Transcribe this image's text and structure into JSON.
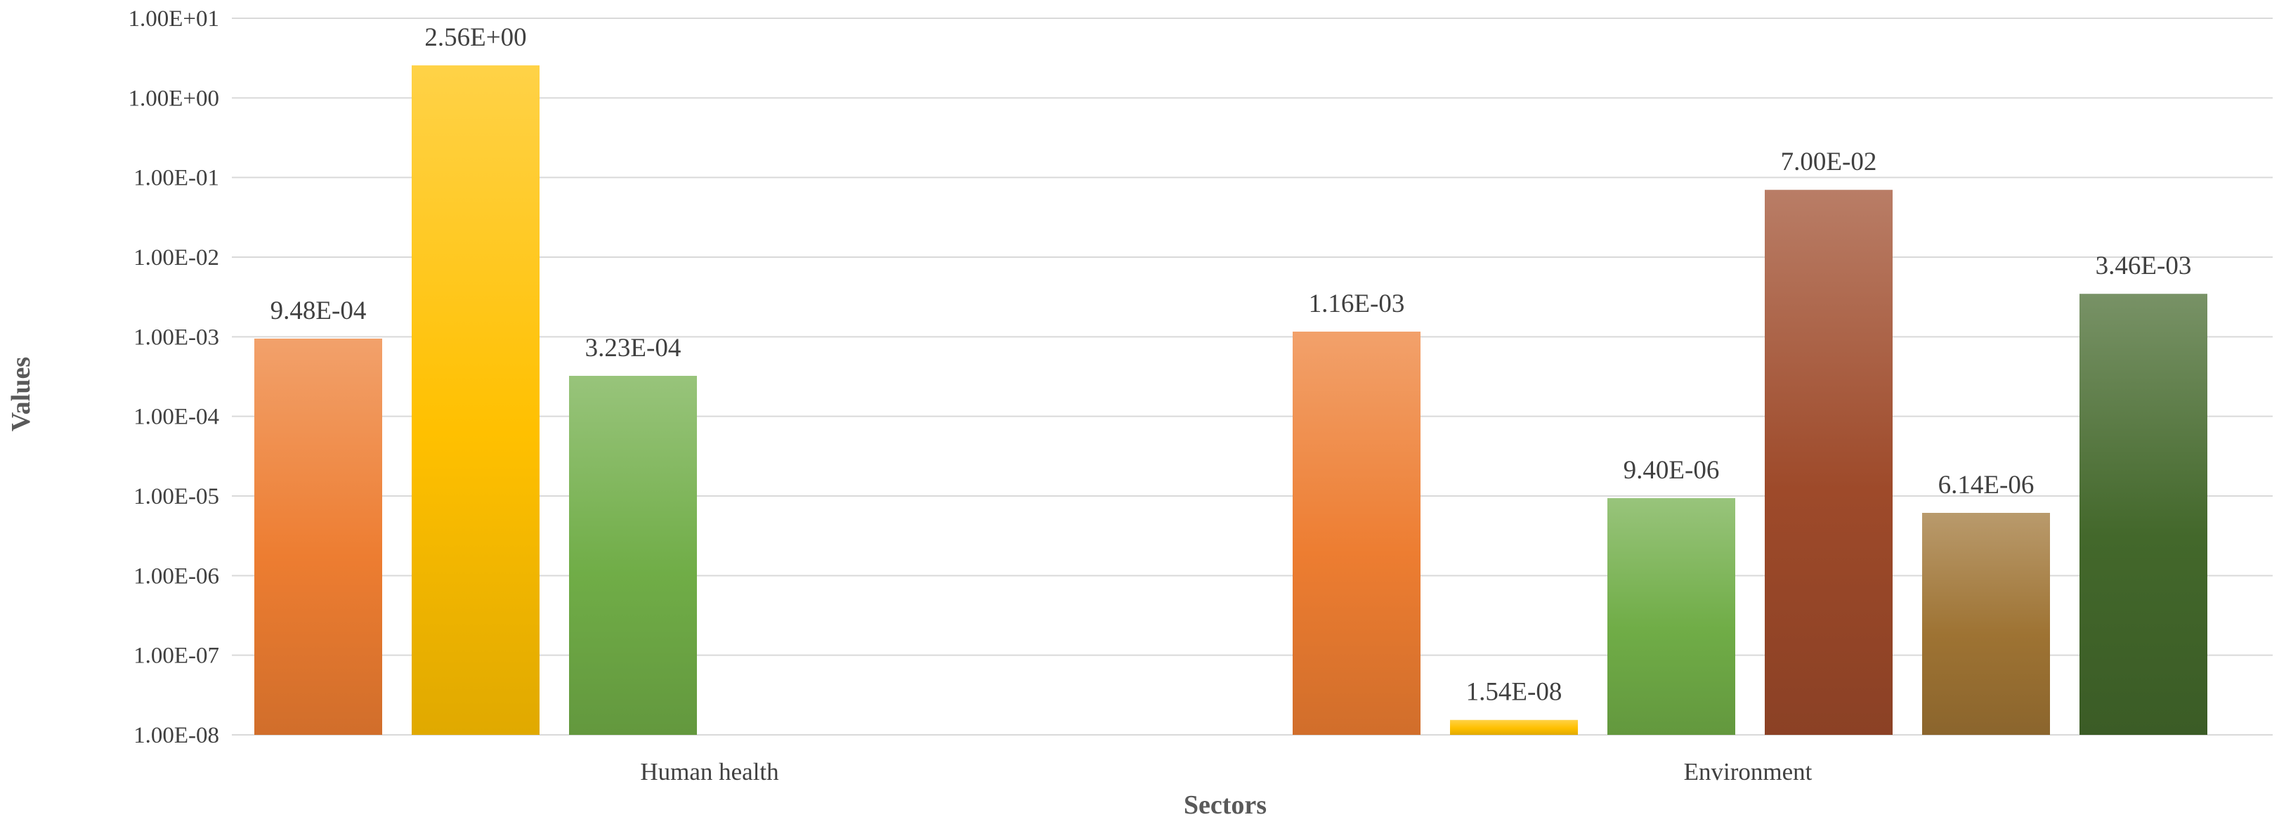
{
  "chart_data": {
    "type": "bar",
    "title": "",
    "xlabel": "Sectors",
    "ylabel": "Values",
    "yscale": "log",
    "ylim": [
      1e-08,
      10
    ],
    "yticks": [
      {
        "value": 1e-08,
        "label": "1.00E-08"
      },
      {
        "value": 1e-07,
        "label": "1.00E-07"
      },
      {
        "value": 1e-06,
        "label": "1.00E-06"
      },
      {
        "value": 1e-05,
        "label": "1.00E-05"
      },
      {
        "value": 0.0001,
        "label": "1.00E-04"
      },
      {
        "value": 0.001,
        "label": "1.00E-03"
      },
      {
        "value": 0.01,
        "label": "1.00E-02"
      },
      {
        "value": 0.1,
        "label": "1.00E-01"
      },
      {
        "value": 1,
        "label": "1.00E+00"
      },
      {
        "value": 10,
        "label": "1.00E+01"
      }
    ],
    "grid": true,
    "legend": "none",
    "categories": [
      {
        "name": "Human health",
        "bars": [
          {
            "value": 0.000948,
            "label": "9.48E-04",
            "color": "#ed7d31"
          },
          {
            "value": 2.56,
            "label": "2.56E+00",
            "color": "#ffc000"
          },
          {
            "value": 0.000323,
            "label": "3.23E-04",
            "color": "#70ad47"
          }
        ]
      },
      {
        "name": "Environment",
        "bars": [
          {
            "value": 0.00116,
            "label": "1.16E-03",
            "color": "#ed7d31"
          },
          {
            "value": 1.54e-08,
            "label": "1.54E-08",
            "color": "#ffc000"
          },
          {
            "value": 9.4e-06,
            "label": "9.40E-06",
            "color": "#70ad47"
          },
          {
            "value": 0.07,
            "label": "7.00E-02",
            "color": "#9e4a2a"
          },
          {
            "value": 6.14e-06,
            "label": "6.14E-06",
            "color": "#9e7333"
          },
          {
            "value": 0.00346,
            "label": "3.46E-03",
            "color": "#43682b"
          }
        ]
      }
    ]
  }
}
